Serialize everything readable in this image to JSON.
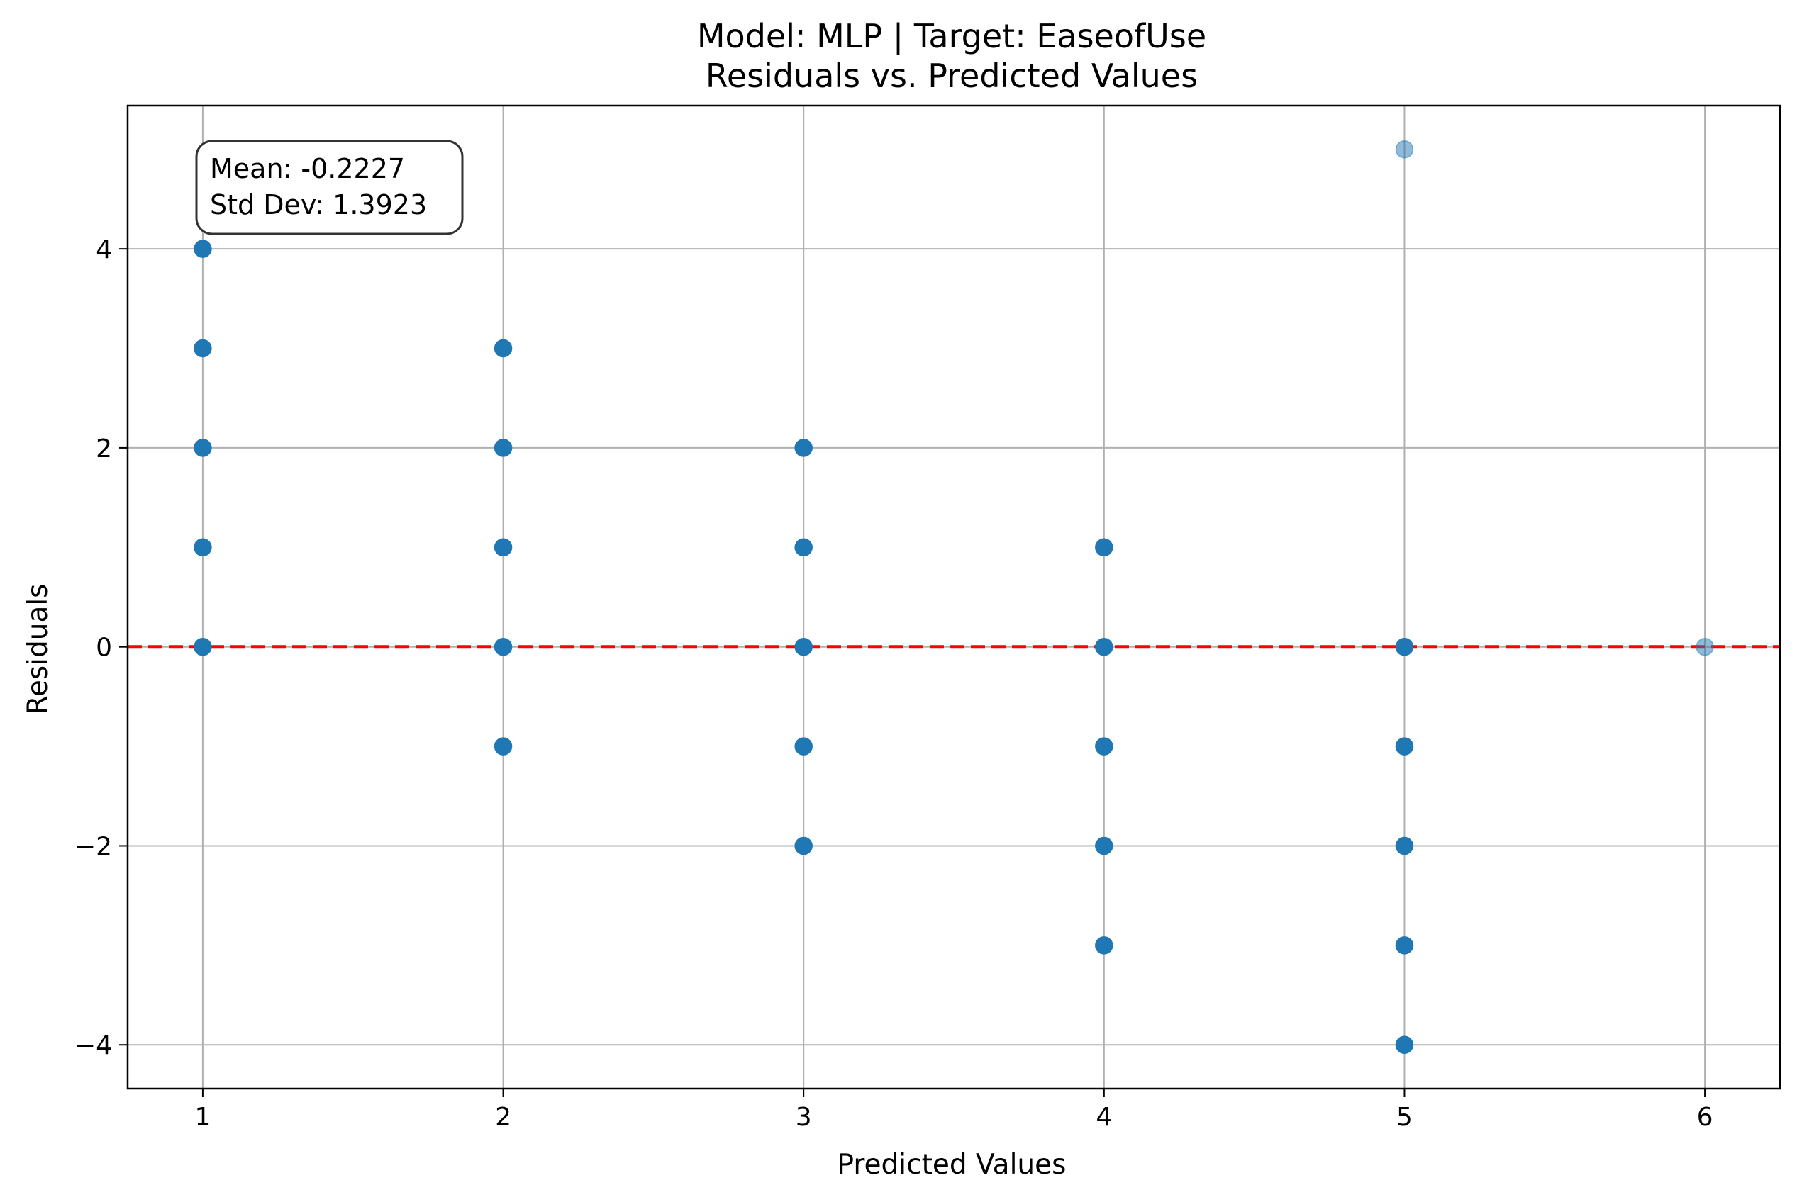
{
  "chart_data": {
    "type": "scatter",
    "title": "Model: MLP | Target: EaseofUse",
    "subtitle": "Residuals vs. Predicted Values",
    "xlabel": "Predicted Values",
    "ylabel": "Residuals",
    "xlim": [
      0.75,
      6.25
    ],
    "ylim": [
      -4.44,
      5.44
    ],
    "xticks": [
      1,
      2,
      3,
      4,
      5,
      6
    ],
    "yticks": [
      -4,
      -2,
      0,
      2,
      4
    ],
    "ytick_labels": [
      "−4",
      "−2",
      "0",
      "2",
      "4"
    ],
    "grid": true,
    "legend": "none",
    "reference_line": {
      "y": 0,
      "style": "dashed",
      "color": "#ff0000"
    },
    "point_color": "#1f77b4",
    "points": [
      {
        "x": 1,
        "y": 4
      },
      {
        "x": 1,
        "y": 3
      },
      {
        "x": 1,
        "y": 2
      },
      {
        "x": 1,
        "y": 1
      },
      {
        "x": 1,
        "y": 0
      },
      {
        "x": 2,
        "y": 3
      },
      {
        "x": 2,
        "y": 2
      },
      {
        "x": 2,
        "y": 1
      },
      {
        "x": 2,
        "y": 0
      },
      {
        "x": 2,
        "y": -1
      },
      {
        "x": 3,
        "y": 2
      },
      {
        "x": 3,
        "y": 1
      },
      {
        "x": 3,
        "y": 0
      },
      {
        "x": 3,
        "y": -1
      },
      {
        "x": 3,
        "y": -2
      },
      {
        "x": 4,
        "y": 1
      },
      {
        "x": 4,
        "y": 0
      },
      {
        "x": 4,
        "y": -1
      },
      {
        "x": 4,
        "y": -2
      },
      {
        "x": 4,
        "y": -3
      },
      {
        "x": 5,
        "y": 5,
        "light": true
      },
      {
        "x": 5,
        "y": 0
      },
      {
        "x": 5,
        "y": -1
      },
      {
        "x": 5,
        "y": -2
      },
      {
        "x": 5,
        "y": -3
      },
      {
        "x": 5,
        "y": -4
      },
      {
        "x": 6,
        "y": 0,
        "light": true
      }
    ],
    "stats": {
      "mean_label": "Mean: -0.2227",
      "std_label": "Std Dev: 1.3923"
    }
  }
}
